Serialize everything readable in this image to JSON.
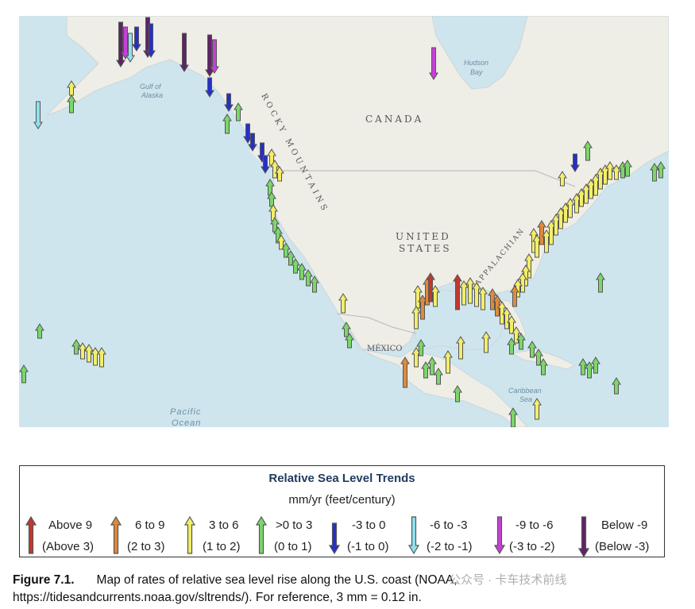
{
  "map": {
    "labels": {
      "canada": "CANADA",
      "rocky_mountains": "ROCKY MOUNTAINS",
      "united_states_1": "UNITED",
      "united_states_2": "STATES",
      "mexico": "MÉXICO",
      "gulf_of_alaska_1": "Gulf of",
      "gulf_of_alaska_2": "Alaska",
      "hudson_bay_1": "Hudson",
      "hudson_bay_2": "Bay",
      "pacific_ocean_1": "Pacific",
      "pacific_ocean_2": "Ocean",
      "caribbean_1": "Caribbean",
      "caribbean_2": "Sea",
      "appalachian": "APPALACHIAN"
    },
    "colors": {
      "water": "#cfe5ee",
      "land": "#eeede6",
      "above9": "#c0392b",
      "6to9": "#e08a3c",
      "3to6": "#f2ee6a",
      "0to3": "#7cd66a",
      "-3to0": "#2530c8",
      "-6to-3": "#8fe1ee",
      "-9to-6": "#c541d6",
      "below-9": "#5e2466"
    }
  },
  "legend": {
    "title": "Relative Sea Level Trends",
    "units": "mm/yr (feet/century)",
    "items": [
      {
        "key": "above9",
        "line1": "Above 9",
        "line2": "(Above 3)",
        "color": "#c0392b",
        "dir": "up"
      },
      {
        "key": "6to9",
        "line1": "6 to 9",
        "line2": "(2 to 3)",
        "color": "#e08a3c",
        "dir": "up"
      },
      {
        "key": "3to6",
        "line1": "3 to 6",
        "line2": "(1 to 2)",
        "color": "#f2ee6a",
        "dir": "up"
      },
      {
        "key": "0to3",
        "line1": ">0 to 3",
        "line2": "(0 to 1)",
        "color": "#7cd66a",
        "dir": "up"
      },
      {
        "key": "-3to0",
        "line1": "-3 to 0",
        "line2": "(-1 to 0)",
        "color": "#2530c8",
        "dir": "down"
      },
      {
        "key": "-6to-3",
        "line1": "-6 to -3",
        "line2": "(-2 to -1)",
        "color": "#8fe1ee",
        "dir": "down"
      },
      {
        "key": "-9to-6",
        "line1": "-9 to -6",
        "line2": "(-3 to -2)",
        "color": "#c541d6",
        "dir": "down"
      },
      {
        "key": "below-9",
        "line1": "Below -9",
        "line2": "(Below -3)",
        "color": "#5e2466",
        "dir": "down"
      }
    ]
  },
  "caption": {
    "figure": "Figure 7.1.",
    "text": "Map of rates of relative sea level rise along the U.S. coast (NOAA, https://tidesandcurrents.noaa.gov/sltrends/). For reference, 3 mm = 0.12 in."
  },
  "watermark": "公众号 · 卡车技术前线"
}
